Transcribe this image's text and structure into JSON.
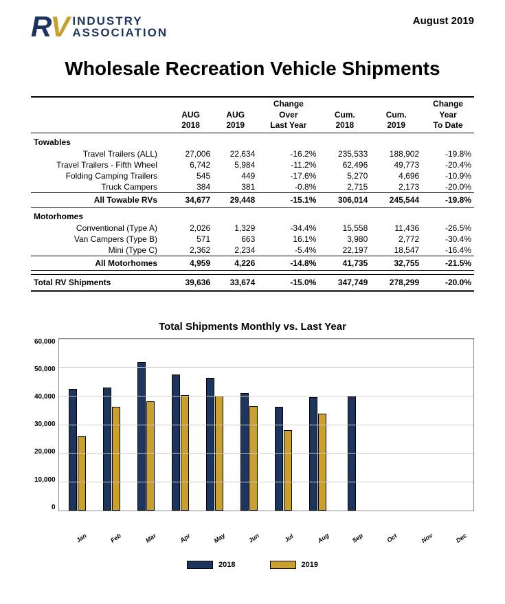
{
  "header": {
    "logo_r": "R",
    "logo_v": "V",
    "logo_line1": "INDUSTRY",
    "logo_line2": "ASSOCIATION",
    "date": "August  2019"
  },
  "title": "Wholesale Recreation Vehicle Shipments",
  "table": {
    "col1l1": "AUG",
    "col1l2": "2018",
    "col2l1": "AUG",
    "col2l2": "2019",
    "col3l1": "Change",
    "col3l2": "Over",
    "col3l3": "Last Year",
    "col4l1": "Cum.",
    "col4l2": "2018",
    "col5l1": "Cum.",
    "col5l2": "2019",
    "col6l1": "Change",
    "col6l2": "Year",
    "col6l3": "To Date",
    "section1": "Towables",
    "r1": {
      "name": "Travel Trailers (ALL)",
      "a": "27,006",
      "b": "22,634",
      "c": "-16.2%",
      "d": "235,533",
      "e": "188,902",
      "f": "-19.8%"
    },
    "r2": {
      "name": "Travel Trailers - Fifth Wheel",
      "a": "6,742",
      "b": "5,984",
      "c": "-11.2%",
      "d": "62,496",
      "e": "49,773",
      "f": "-20.4%"
    },
    "r3": {
      "name": "Folding Camping Trailers",
      "a": "545",
      "b": "449",
      "c": "-17.6%",
      "d": "5,270",
      "e": "4,696",
      "f": "-10.9%"
    },
    "r4": {
      "name": "Truck Campers",
      "a": "384",
      "b": "381",
      "c": "-0.8%",
      "d": "2,715",
      "e": "2,173",
      "f": "-20.0%"
    },
    "sub1": {
      "name": "All Towable RVs",
      "a": "34,677",
      "b": "29,448",
      "c": "-15.1%",
      "d": "306,014",
      "e": "245,544",
      "f": "-19.8%"
    },
    "section2": "Motorhomes",
    "r5": {
      "name": "Conventional (Type A)",
      "a": "2,026",
      "b": "1,329",
      "c": "-34.4%",
      "d": "15,558",
      "e": "11,436",
      "f": "-26.5%"
    },
    "r6": {
      "name": "Van Campers (Type B)",
      "a": "571",
      "b": "663",
      "c": "16.1%",
      "d": "3,980",
      "e": "2,772",
      "f": "-30.4%"
    },
    "r7": {
      "name": "Mini (Type C)",
      "a": "2,362",
      "b": "2,234",
      "c": "-5.4%",
      "d": "22,197",
      "e": "18,547",
      "f": "-16.4%"
    },
    "sub2": {
      "name": "All Motorhomes",
      "a": "4,959",
      "b": "4,226",
      "c": "-14.8%",
      "d": "41,735",
      "e": "32,755",
      "f": "-21.5%"
    },
    "total": {
      "name": "Total RV Shipments",
      "a": "39,636",
      "b": "33,674",
      "c": "-15.0%",
      "d": "347,749",
      "e": "278,299",
      "f": "-20.0%"
    }
  },
  "chart": {
    "title": "Total Shipments Monthly vs. Last Year",
    "ylim_max": 60000,
    "yticks": [
      "60,000",
      "50,000",
      "40,000",
      "30,000",
      "20,000",
      "10,000",
      "0"
    ],
    "months": [
      "Jan",
      "Feb",
      "Mar",
      "Apr",
      "May",
      "Jun",
      "Jul",
      "Aug",
      "Sep",
      "Oct",
      "Nov",
      "Dec"
    ],
    "series_2018": [
      42500,
      43000,
      51800,
      47500,
      46300,
      41000,
      36300,
      39636,
      39700,
      null,
      null,
      null
    ],
    "series_2019": [
      25800,
      36300,
      38200,
      40300,
      40000,
      36500,
      28000,
      33674,
      null,
      null,
      null,
      null
    ],
    "color_2018": "#1b355e",
    "color_2019": "#c9a02f",
    "grid_color": "#cccccc",
    "legend_a": "2018",
    "legend_b": "2019"
  }
}
